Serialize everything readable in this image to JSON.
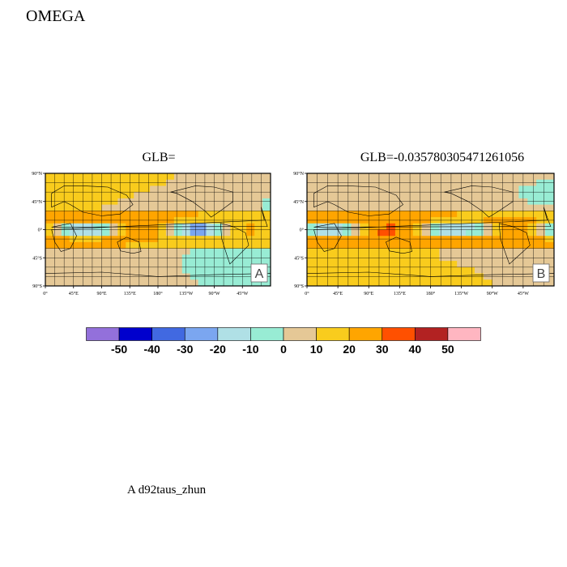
{
  "figure": {
    "title": "OMEGA",
    "caption": "A  d92taus_zhun"
  },
  "panels": [
    {
      "id": "A",
      "title": "GLB=",
      "label": "A"
    },
    {
      "id": "B",
      "title": "GLB=-0.035780305471261056",
      "label": "B"
    }
  ],
  "map_axes": {
    "lat_ticks": [
      "90°N",
      "45°N",
      "0°",
      "45°S",
      "90°S"
    ],
    "lon_ticks": [
      "0°",
      "45°E",
      "90°E",
      "135°E",
      "180°",
      "135°W",
      "90°W",
      "45°W"
    ]
  },
  "colorbar": {
    "colors": [
      "#9370db",
      "#0000cd",
      "#4169e1",
      "#7ba6f0",
      "#b0e0e6",
      "#98ecd4",
      "#e5c896",
      "#f9cc1d",
      "#ffa500",
      "#ff5000",
      "#b22222",
      "#ffb6c1"
    ],
    "labels": [
      "-50",
      "-40",
      "-30",
      "-20",
      "-10",
      "0",
      "10",
      "20",
      "30",
      "40",
      "50"
    ]
  }
}
